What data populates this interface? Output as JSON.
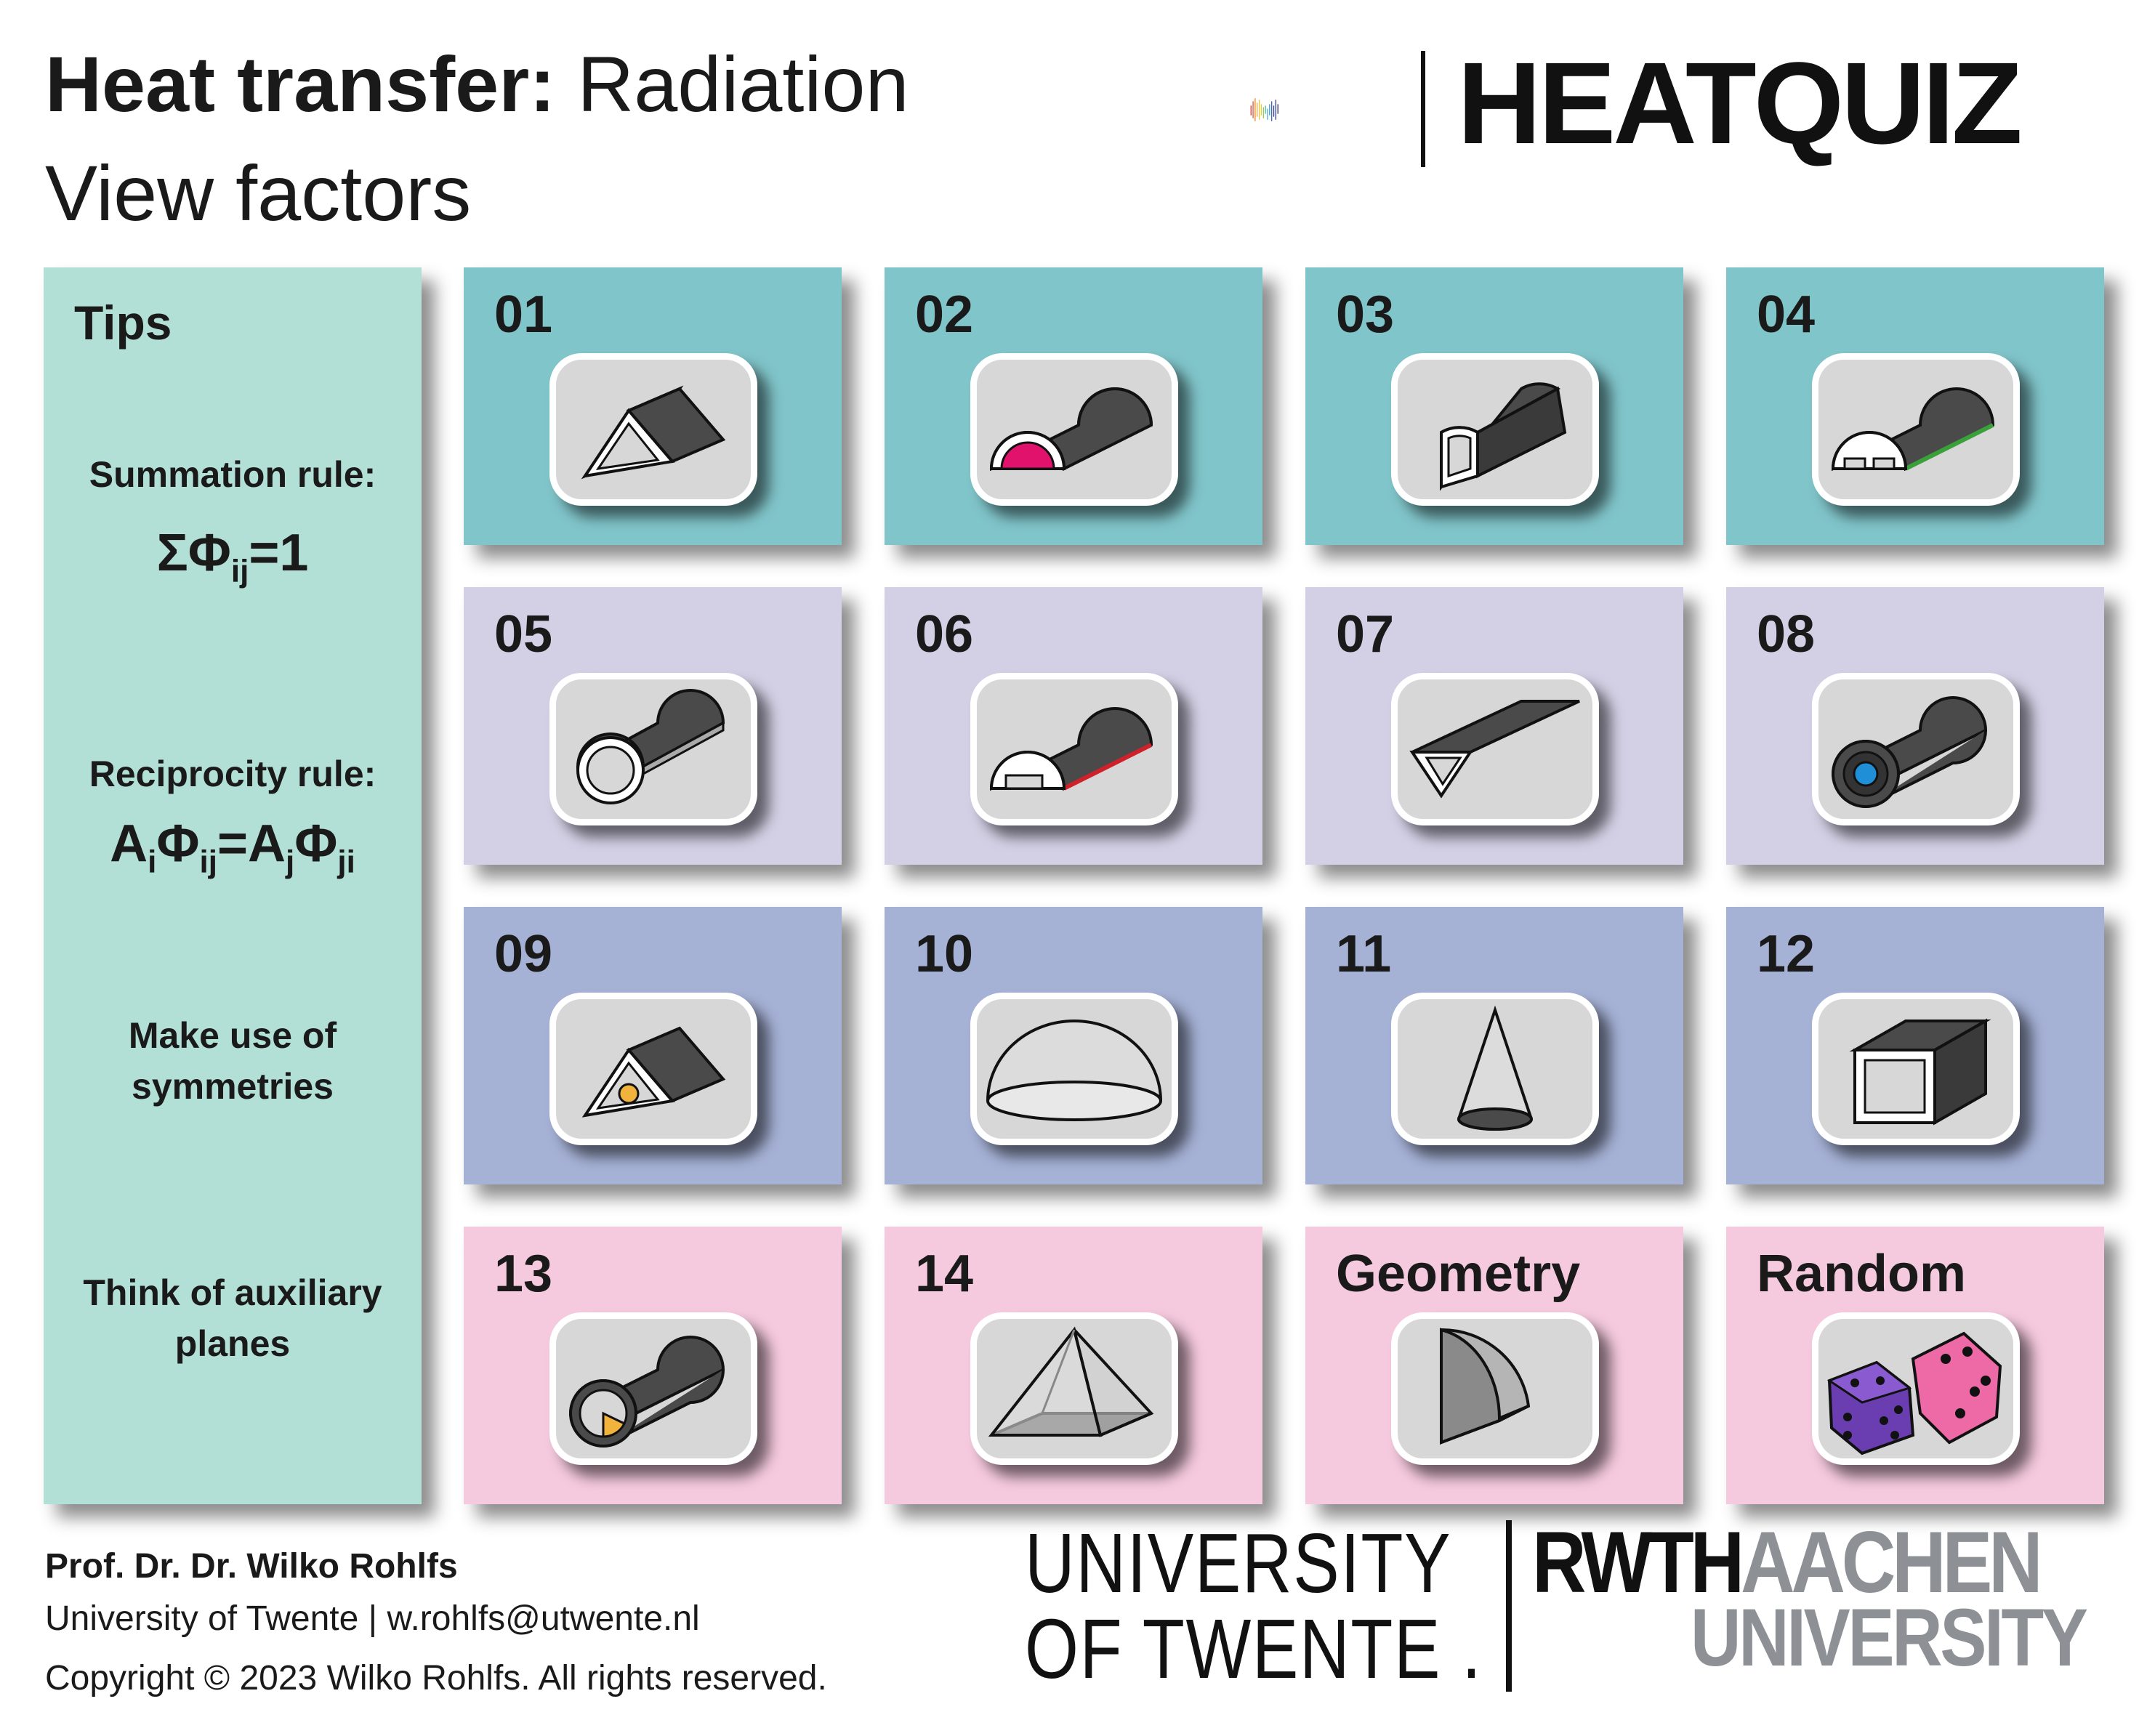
{
  "header": {
    "title_bold": "Heat transfer:",
    "title_rest": " Radiation",
    "subtitle": "View factors",
    "logo_text": "HEATQUIZ"
  },
  "tips": {
    "title": "Tips",
    "summation_label": "Summation rule:",
    "summation_formula": {
      "a": "ΣΦ",
      "sub": "ij",
      "b": "=1"
    },
    "reciprocity_label": "Reciprocity rule:",
    "reciprocity_formula": {
      "a": "A",
      "sub1": "i",
      "b": "Φ",
      "sub2": "ij",
      "c": "=A",
      "sub3": "j",
      "d": "Φ",
      "sub4": "ji"
    },
    "symmetry_line1": "Make use of",
    "symmetry_line2": "symmetries",
    "aux_line1": "Think of auxiliary",
    "aux_line2": "planes"
  },
  "tiles": [
    {
      "label": "01",
      "icon": "triangular-prism-icon"
    },
    {
      "label": "02",
      "icon": "half-cylinder-pink-icon"
    },
    {
      "label": "03",
      "icon": "quarter-cylinder-icon"
    },
    {
      "label": "04",
      "icon": "half-cylinder-green-icon"
    },
    {
      "label": "05",
      "icon": "concentric-half-cylinder-icon"
    },
    {
      "label": "06",
      "icon": "half-cylinder-red-icon"
    },
    {
      "label": "07",
      "icon": "inclined-plates-icon"
    },
    {
      "label": "08",
      "icon": "concentric-cylinder-icon"
    },
    {
      "label": "09",
      "icon": "prism-with-sphere-icon"
    },
    {
      "label": "10",
      "icon": "hemisphere-icon"
    },
    {
      "label": "11",
      "icon": "cone-icon"
    },
    {
      "label": "12",
      "icon": "square-duct-icon"
    },
    {
      "label": "13",
      "icon": "cylinder-with-segment-icon"
    },
    {
      "label": "14",
      "icon": "pyramid-icon"
    },
    {
      "label": "Geometry",
      "icon": "geometry-icon"
    },
    {
      "label": "Random",
      "icon": "dice-icon"
    }
  ],
  "colors": {
    "row1": "#80c5ca",
    "row2": "#d3d0e5",
    "row3": "#a5b1d5",
    "row4": "#f5c9de",
    "tips_bg": "#b2dfd6",
    "pink_surface": "#e0126c",
    "green_edge": "#3aa13a",
    "red_edge": "#d0202a",
    "blue_surface": "#1f8fd8",
    "yellow_surface": "#f2b33c"
  },
  "footer": {
    "author": "Prof. Dr. Dr. Wilko Rohlfs",
    "affiliation": "University of Twente  |  w.rohlfs@utwente.nl",
    "copyright": "Copyright © 2023 Wilko Rohlfs. All rights reserved.",
    "ut_line1": "UNIVERSITY",
    "ut_line2": "OF TWENTE .",
    "rwth_dark": "RWTH",
    "rwth_grey": "AACHEN",
    "rwth_univ": "UNIVERSITY"
  }
}
